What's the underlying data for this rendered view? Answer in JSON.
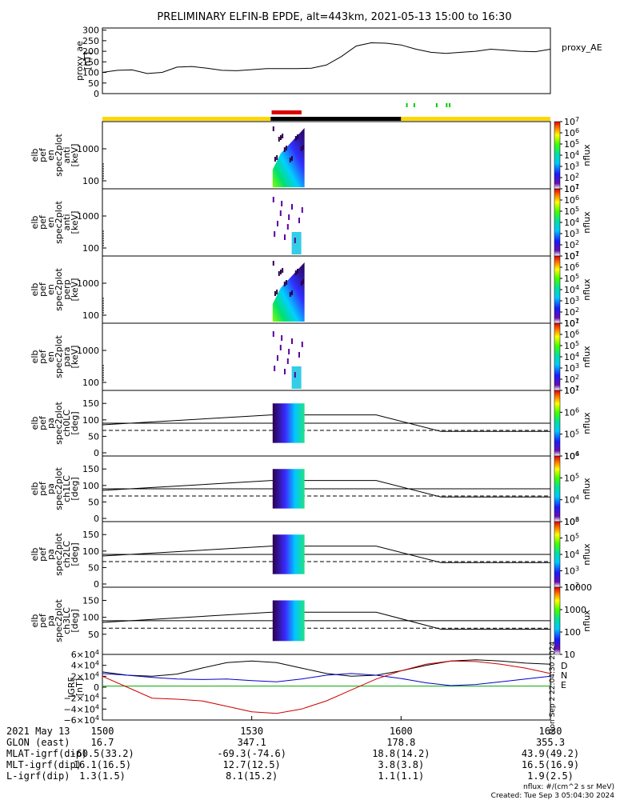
{
  "title": "PRELIMINARY ELFIN-B EPDE, alt=443km, 2021-05-13 15:00 to 16:30",
  "chart_data": [
    {
      "type": "line",
      "name": "proxy_ae",
      "ylabel_lines": [
        "proxy_ae",
        "[nT]"
      ],
      "legend": "proxy_AE",
      "yticks": [
        "0",
        "50",
        "100",
        "150",
        "200",
        "250",
        "300"
      ],
      "ylim": [
        0,
        310
      ],
      "x_minutes": [
        0,
        3,
        6,
        9,
        12,
        15,
        18,
        21,
        24,
        27,
        30,
        33,
        36,
        39,
        42,
        45,
        48,
        51,
        54,
        57,
        60,
        63,
        66,
        69,
        72,
        75,
        78,
        81,
        84,
        87,
        90
      ],
      "values": [
        100,
        110,
        112,
        95,
        100,
        125,
        128,
        120,
        110,
        108,
        113,
        118,
        118,
        118,
        120,
        135,
        175,
        225,
        240,
        238,
        230,
        210,
        195,
        190,
        195,
        200,
        210,
        205,
        200,
        198,
        210
      ]
    },
    {
      "type": "heatmap",
      "name": "elb_pef_en_spec2plot_anti",
      "ylabel_lines": [
        "elb",
        "pef",
        "en",
        "spec2plot",
        "anti",
        "[keV]"
      ],
      "yticks": [
        "100",
        "1000"
      ],
      "colorbar_ticks": [
        "10^7",
        "10^6",
        "10^5",
        "10^4",
        "10^3",
        "10^2",
        "10^1"
      ],
      "colorbar_label": "nflux"
    },
    {
      "type": "heatmap",
      "name": "elb_pef_en_spec2plot_anti_sparse",
      "ylabel_lines": [
        "elb",
        "pef",
        "en",
        "spec2plot",
        "anti",
        "[keV]"
      ],
      "yticks": [
        "100",
        "1000"
      ],
      "colorbar_ticks": [
        "10^7",
        "10^6",
        "10^5",
        "10^4",
        "10^3",
        "10^2",
        "10^1"
      ],
      "colorbar_label": "nflux"
    },
    {
      "type": "heatmap",
      "name": "elb_pef_en_spec2plot_perp",
      "ylabel_lines": [
        "elb",
        "pef",
        "en",
        "spec2plot",
        "perp",
        "[keV]"
      ],
      "yticks": [
        "100",
        "1000"
      ],
      "colorbar_ticks": [
        "10^7",
        "10^6",
        "10^5",
        "10^4",
        "10^3",
        "10^2",
        "10^1"
      ],
      "colorbar_label": "nflux"
    },
    {
      "type": "heatmap",
      "name": "elb_pef_en_spec2plot_para",
      "ylabel_lines": [
        "elb",
        "pef",
        "en",
        "spec2plot",
        "para",
        "[keV]"
      ],
      "yticks": [
        "100",
        "1000"
      ],
      "colorbar_ticks": [
        "10^7",
        "10^6",
        "10^5",
        "10^4",
        "10^3",
        "10^2",
        "10^1"
      ],
      "colorbar_label": "nflux"
    },
    {
      "type": "heatmap",
      "name": "elb_pef_pa_spec2plot_ch0LC",
      "ylabel_lines": [
        "elb",
        "pef",
        "pa",
        "spec2plot",
        "ch0LC",
        "[deg]"
      ],
      "yticks": [
        "0",
        "50",
        "100",
        "150"
      ],
      "colorbar_ticks": [
        "10^7",
        "10^6",
        "10^5",
        "10^4"
      ],
      "colorbar_label": "nflux"
    },
    {
      "type": "heatmap",
      "name": "elb_pef_pa_spec2plot_ch1LC",
      "ylabel_lines": [
        "elb",
        "pef",
        "pa",
        "spec2plot",
        "ch1LC",
        "[deg]"
      ],
      "yticks": [
        "0",
        "50",
        "100",
        "150"
      ],
      "colorbar_ticks": [
        "10^6",
        "10^5",
        "10^4",
        "10^3"
      ],
      "colorbar_label": "nflux"
    },
    {
      "type": "heatmap",
      "name": "elb_pef_pa_spec2plot_ch2LC",
      "ylabel_lines": [
        "elb",
        "pef",
        "pa",
        "spec2plot",
        "ch2LC",
        "[deg]"
      ],
      "yticks": [
        "0",
        "50",
        "100",
        "150"
      ],
      "colorbar_ticks": [
        "10^6",
        "10^5",
        "10^4",
        "10^3",
        "10^2"
      ],
      "colorbar_label": "nflux"
    },
    {
      "type": "heatmap",
      "name": "elb_pef_pa_spec2plot_ch3LC",
      "ylabel_lines": [
        "elb",
        "pef",
        "pa",
        "spec2plot",
        "ch3LC",
        "[deg]"
      ],
      "yticks": [
        "50",
        "100",
        "150"
      ],
      "colorbar_ticks": [
        "10000",
        "1000",
        "100",
        "10"
      ],
      "colorbar_label": "nflux"
    },
    {
      "type": "line",
      "name": "IGRF",
      "ylabel_lines": [
        "IGRF",
        "[nT]"
      ],
      "yticks": [
        "6×10^4",
        "4×10^4",
        "2×10^4",
        "0",
        "−2×10^4",
        "−4×10^4",
        "−6×10^4"
      ],
      "ylim": [
        -60000,
        60000
      ],
      "legend": [
        "D",
        "N",
        "E"
      ],
      "x_minutes": [
        0,
        5,
        10,
        15,
        20,
        25,
        30,
        35,
        40,
        45,
        50,
        55,
        60,
        65,
        70,
        75,
        80,
        85,
        90
      ],
      "series": [
        {
          "name": "D",
          "color": "#000000",
          "values": [
            28000,
            22000,
            20000,
            24000,
            35000,
            45000,
            48000,
            45000,
            35000,
            25000,
            20000,
            22000,
            30000,
            40000,
            48000,
            50000,
            48000,
            44000,
            42000
          ]
        },
        {
          "name": "N",
          "color": "#0000cc",
          "values": [
            25000,
            22000,
            18000,
            15000,
            14000,
            15000,
            12000,
            10000,
            15000,
            22000,
            25000,
            22000,
            16000,
            8000,
            3000,
            5000,
            10000,
            15000,
            20000
          ]
        },
        {
          "name": "E",
          "color": "#cc0000",
          "values": [
            20000,
            0,
            -20000,
            -22000,
            -25000,
            -35000,
            -45000,
            -48000,
            -40000,
            -25000,
            -5000,
            15000,
            30000,
            42000,
            48000,
            47000,
            42000,
            35000,
            25000
          ]
        }
      ],
      "flat": {
        "name": "E-green",
        "color": "#00aa00",
        "value": 2000
      }
    }
  ],
  "bars": {
    "red_label": "",
    "colors": {
      "yellow": "#ffd700",
      "black": "#000000",
      "red": "#dd0000",
      "green": "#00cc00"
    }
  },
  "xaxis": {
    "row_labels": [
      "2021 May 13",
      "GLON (east)",
      "MLAT-igrf(dip)",
      "MLT-igrf(dip)",
      "L-igrf(dip)"
    ],
    "ticks": [
      "1500",
      "1530",
      "1600",
      "1630"
    ],
    "columns": [
      [
        "1500",
        "16.7",
        "-60.5(33.2)",
        "16.1(16.5)",
        "1.3(1.5)"
      ],
      [
        "1530",
        "347.1",
        "-69.3(-74.6)",
        "12.7(12.5)",
        "8.1(15.2)"
      ],
      [
        "1600",
        "178.8",
        "18.8(14.2)",
        "3.8(3.8)",
        "1.1(1.1)"
      ],
      [
        "1630",
        "355.3",
        "43.9(49.2)",
        "16.5(16.9)",
        "1.9(2.5)"
      ]
    ]
  },
  "footer": {
    "nflux_note": "nflux: #/(cm^2 s sr MeV)",
    "created": "Created: Tue Sep  3 05:04:30 2024",
    "side_stamp": "Mon Sep  2 22:04:30 2024"
  }
}
